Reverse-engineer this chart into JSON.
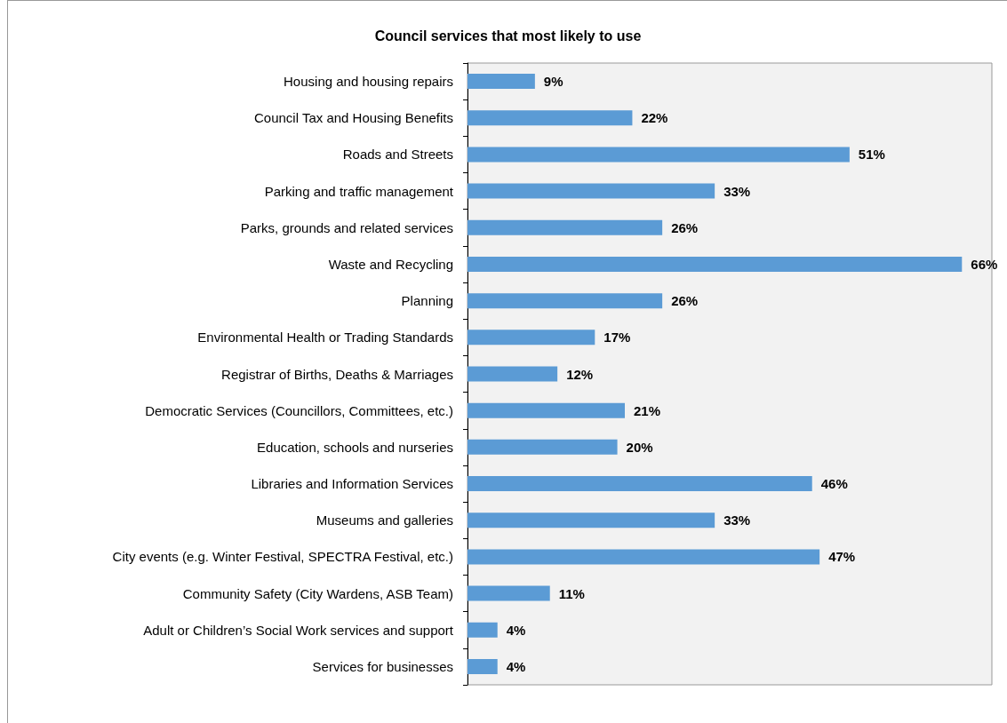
{
  "chart_data": {
    "type": "bar",
    "orientation": "horizontal",
    "title": "Council services that most likely to use",
    "categories": [
      "Housing and housing repairs",
      "Council Tax and Housing Benefits",
      "Roads and Streets",
      "Parking and traffic management",
      "Parks, grounds and related services",
      "Waste and Recycling",
      "Planning",
      "Environmental Health or Trading Standards",
      "Registrar of Births, Deaths & Marriages",
      "Democratic Services (Councillors, Committees, etc.)",
      "Education, schools and nurseries",
      "Libraries and Information Services",
      "Museums and galleries",
      "City events (e.g. Winter Festival, SPECTRA Festival, etc.)",
      "Community Safety (City Wardens, ASB Team)",
      "Adult or Children’s Social Work services and support",
      "Services for businesses"
    ],
    "values": [
      9,
      22,
      51,
      33,
      26,
      66,
      26,
      17,
      12,
      21,
      20,
      46,
      33,
      47,
      11,
      4,
      4
    ],
    "value_labels": [
      "9%",
      "22%",
      "51%",
      "33%",
      "26%",
      "66%",
      "26%",
      "17%",
      "12%",
      "21%",
      "20%",
      "46%",
      "33%",
      "47%",
      "11%",
      "4%",
      "4%"
    ],
    "color": "#5b9bd5",
    "grid": false,
    "tick_labels": "y"
  }
}
